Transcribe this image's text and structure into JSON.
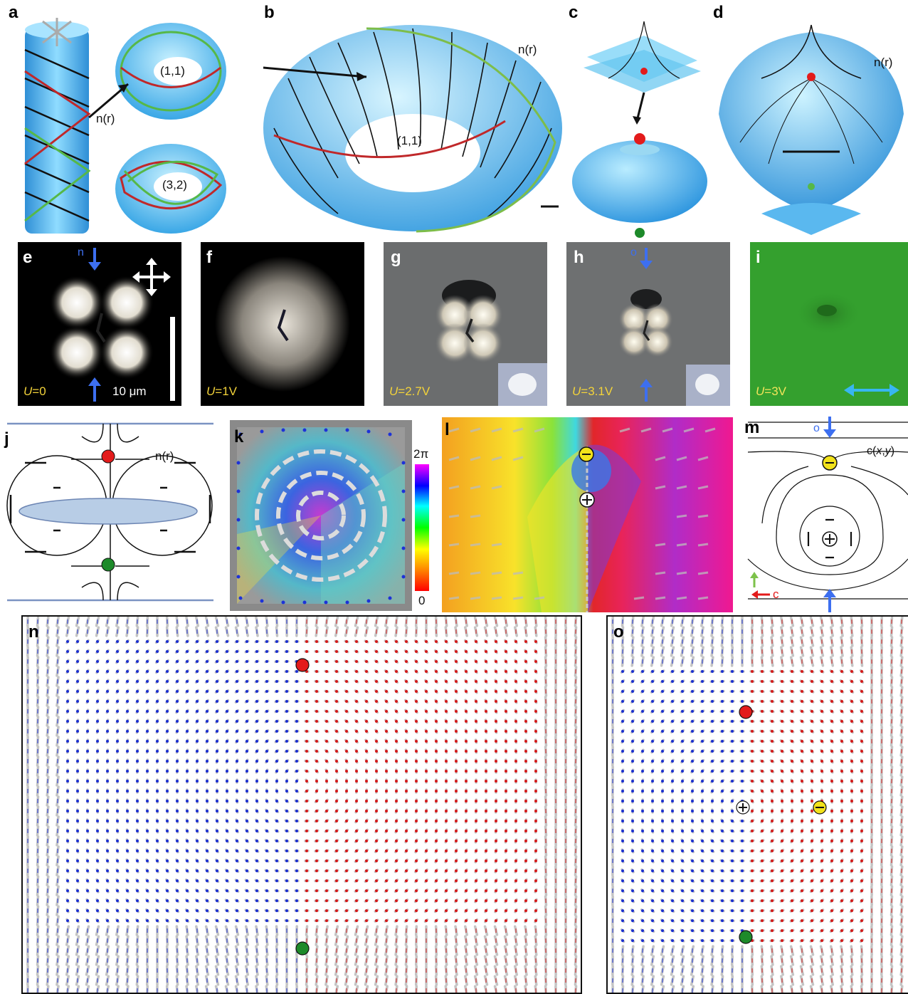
{
  "panels": {
    "a": {
      "label": "a",
      "vector_label": "n(r)",
      "knot1": "(1,1)",
      "knot2": "(3,2)"
    },
    "b": {
      "label": "b",
      "vector_label": "n(r)",
      "knot": "(1,1)"
    },
    "c": {
      "label": "c"
    },
    "d": {
      "label": "d",
      "vector_label": "n(r)"
    },
    "e": {
      "label": "e",
      "dir_label": "n",
      "voltage_var": "U",
      "voltage_value": "=0",
      "scale_bar": "10 μm"
    },
    "f": {
      "label": "f",
      "voltage_var": "U",
      "voltage_value": "=1V"
    },
    "g": {
      "label": "g",
      "voltage_var": "U",
      "voltage_value": "=2.7V"
    },
    "h": {
      "label": "h",
      "dir_label": "o",
      "voltage_var": "U",
      "voltage_value": "=3.1V"
    },
    "i": {
      "label": "i",
      "voltage_var": "U",
      "voltage_value": "=3V"
    },
    "j": {
      "label": "j",
      "vector_label": "n(r)"
    },
    "k": {
      "label": "k",
      "colorbar_max": "2π",
      "colorbar_min": "0"
    },
    "l": {
      "label": "l"
    },
    "m": {
      "label": "m",
      "dir_label": "o",
      "field_label_prefix": "c(",
      "field_label_x": "x",
      "field_label_sep": ",",
      "field_label_y": "y",
      "field_label_suffix": ")",
      "vector_c": "c"
    },
    "n": {
      "label": "n"
    },
    "o": {
      "label": "o"
    }
  },
  "colors": {
    "torus_blue": "#5cc6f2",
    "knot_red": "#c0282a",
    "knot_green": "#56b848",
    "defect_red": "#e31b1b",
    "defect_green": "#1d8a2a",
    "defect_yellow": "#f2e21a",
    "arrow_blue": "#3d6ff0",
    "voltage_yellow": "#f3d33a"
  }
}
